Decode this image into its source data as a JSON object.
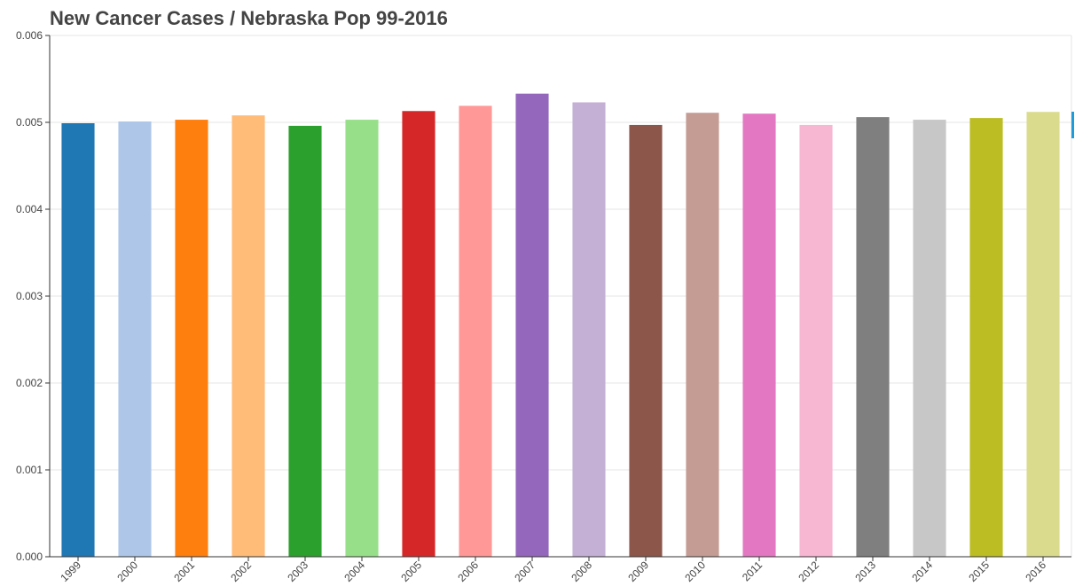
{
  "chart_data": {
    "type": "bar",
    "title": "New Cancer Cases / Nebraska Pop 99-2016",
    "xlabel": "",
    "ylabel": "",
    "ylim": [
      0,
      0.006
    ],
    "grid": true,
    "legend": "none",
    "yticks": [
      "0.000",
      "0.001",
      "0.002",
      "0.003",
      "0.004",
      "0.005",
      "0.006"
    ],
    "categories": [
      "1999",
      "2000",
      "2001",
      "2002",
      "2003",
      "2004",
      "2005",
      "2006",
      "2007",
      "2008",
      "2009",
      "2010",
      "2011",
      "2012",
      "2013",
      "2014",
      "2015",
      "2016"
    ],
    "values": [
      0.00499,
      0.00501,
      0.00503,
      0.00508,
      0.00496,
      0.00503,
      0.00513,
      0.00519,
      0.00533,
      0.00523,
      0.00497,
      0.00511,
      0.0051,
      0.00497,
      0.00506,
      0.00503,
      0.00505,
      0.00512
    ],
    "colors": [
      "#1f77b4",
      "#aec7e8",
      "#ff7f0e",
      "#ffbb78",
      "#2ca02c",
      "#98df8a",
      "#d62728",
      "#ff9896",
      "#9467bd",
      "#c5b0d5",
      "#8c564b",
      "#c49c94",
      "#e377c2",
      "#f7b6d2",
      "#7f7f7f",
      "#c7c7c7",
      "#bcbd22",
      "#dbdb8d"
    ]
  }
}
